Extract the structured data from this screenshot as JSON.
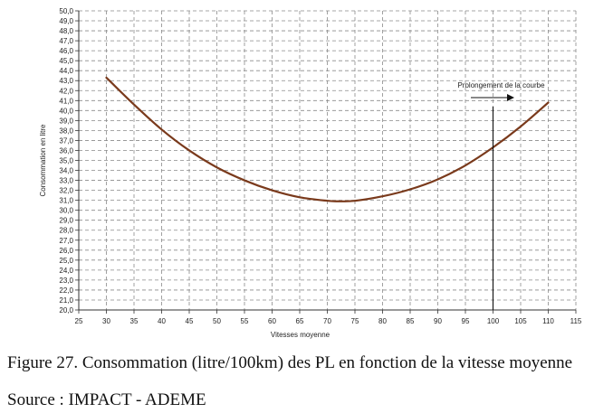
{
  "chart_data": {
    "type": "line",
    "xlabel": "Vitesses moyenne",
    "ylabel": "Consommation en litre",
    "xlim": [
      25,
      115
    ],
    "ylim": [
      20.0,
      50.0
    ],
    "x_ticks": [
      "25",
      "30",
      "35",
      "40",
      "45",
      "50",
      "55",
      "60",
      "65",
      "70",
      "75",
      "80",
      "85",
      "90",
      "95",
      "100",
      "105",
      "110",
      "115"
    ],
    "y_ticks": [
      "20,0",
      "21,0",
      "22,0",
      "23,0",
      "24,0",
      "25,0",
      "26,0",
      "27,0",
      "28,0",
      "29,0",
      "30,0",
      "31,0",
      "32,0",
      "33,0",
      "34,0",
      "35,0",
      "36,0",
      "37,0",
      "38,0",
      "39,0",
      "40,0",
      "41,0",
      "42,0",
      "43,0",
      "44,0",
      "45,0",
      "46,0",
      "47,0",
      "48,0",
      "49,0",
      "50,0"
    ],
    "grid": true,
    "series": [
      {
        "color": "#7a3a1c",
        "x": [
          30,
          35,
          40,
          45,
          50,
          55,
          60,
          65,
          70,
          72,
          75,
          80,
          85,
          90,
          95,
          100,
          105,
          110
        ],
        "y": [
          43.3,
          40.6,
          38.1,
          36.0,
          34.3,
          33.0,
          32.0,
          31.3,
          30.95,
          30.9,
          30.95,
          31.4,
          32.1,
          33.1,
          34.5,
          36.3,
          38.4,
          40.8
        ]
      }
    ],
    "annotation": {
      "text": "Prolongement de la courbe",
      "vline_x": 100
    }
  },
  "caption": "Figure 27. Consommation (litre/100km) des PL en fonction de la vitesse moyenne",
  "source": "Source : IMPACT - ADEME"
}
